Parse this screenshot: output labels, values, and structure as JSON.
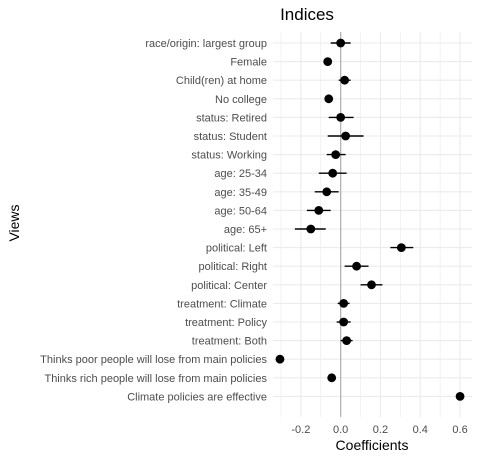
{
  "chart_data": {
    "type": "scatter",
    "variant": "coefficient-plot",
    "title": "Indices",
    "xlabel": "Coefficients",
    "ylabel": "Views",
    "xlim": [
      -0.34,
      0.66
    ],
    "xticks": [
      -0.2,
      0.0,
      0.2,
      0.4,
      0.6
    ],
    "xtick_labels": [
      "-0.2",
      "0.0",
      "0.2",
      "0.4",
      "0.6"
    ],
    "grid": true,
    "reference_line": 0,
    "colors": {
      "point": "#000000",
      "grid": "#ebebeb",
      "reference": "#b3b3b3"
    },
    "terms": [
      {
        "label": "race/origin: largest group",
        "estimate": 0.0,
        "low": -0.05,
        "high": 0.05
      },
      {
        "label": "Female",
        "estimate": -0.065,
        "low": -0.085,
        "high": -0.045
      },
      {
        "label": "Child(ren) at home",
        "estimate": 0.02,
        "low": -0.01,
        "high": 0.05
      },
      {
        "label": "No college",
        "estimate": -0.06,
        "low": -0.08,
        "high": -0.04
      },
      {
        "label": "status: Retired",
        "estimate": 0.0,
        "low": -0.06,
        "high": 0.065
      },
      {
        "label": "status: Student",
        "estimate": 0.025,
        "low": -0.065,
        "high": 0.115
      },
      {
        "label": "status: Working",
        "estimate": -0.025,
        "low": -0.07,
        "high": 0.025
      },
      {
        "label": "age: 25-34",
        "estimate": -0.04,
        "low": -0.11,
        "high": 0.03
      },
      {
        "label": "age: 35-49",
        "estimate": -0.07,
        "low": -0.13,
        "high": -0.01
      },
      {
        "label": "age: 50-64",
        "estimate": -0.11,
        "low": -0.17,
        "high": -0.05
      },
      {
        "label": "age: 65+",
        "estimate": -0.15,
        "low": -0.23,
        "high": -0.075
      },
      {
        "label": "political: Left",
        "estimate": 0.305,
        "low": 0.25,
        "high": 0.365
      },
      {
        "label": "political: Right",
        "estimate": 0.08,
        "low": 0.02,
        "high": 0.14
      },
      {
        "label": "political: Center",
        "estimate": 0.155,
        "low": 0.1,
        "high": 0.21
      },
      {
        "label": "treatment: Climate",
        "estimate": 0.015,
        "low": -0.015,
        "high": 0.045
      },
      {
        "label": "treatment: Policy",
        "estimate": 0.015,
        "low": -0.02,
        "high": 0.05
      },
      {
        "label": "treatment: Both",
        "estimate": 0.03,
        "low": 0.0,
        "high": 0.06
      },
      {
        "label": "Thinks poor people will lose from main policies",
        "estimate": -0.305,
        "low": -0.315,
        "high": -0.295
      },
      {
        "label": "Thinks rich people will lose from main policies",
        "estimate": -0.045,
        "low": -0.055,
        "high": -0.035
      },
      {
        "label": "Climate policies are effective",
        "estimate": 0.6,
        "low": 0.59,
        "high": 0.61
      }
    ]
  }
}
